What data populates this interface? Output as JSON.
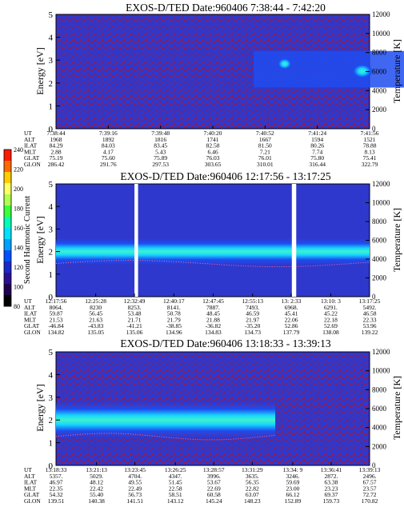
{
  "colors": {
    "background_blue": "#2f38cc",
    "band_blue": "#1e4cf0",
    "band_cyan": "#18d8ff",
    "band_core": "#3ff2c8",
    "noise_red": "#a0153c",
    "gap_white": "#ffffff",
    "trace_dots": "#ff6aa0"
  },
  "colorbar": {
    "label": "Second Harmonic Current",
    "ticks": [
      "240",
      "220",
      "200",
      "180",
      "160",
      "140",
      "120",
      "100",
      "80"
    ],
    "colors": [
      "#ff1a00",
      "#ff6a00",
      "#ffcc00",
      "#ffff66",
      "#b0ff50",
      "#3cff3c",
      "#00ffb4",
      "#00e0ff",
      "#00a0ff",
      "#0050ff",
      "#1a28c8",
      "#2a1090",
      "#200050",
      "#000000"
    ]
  },
  "chart_data": [
    {
      "type": "heatmap",
      "title": "EXOS-D/TED   Date:960406  7:38:44 - 7:42:20",
      "ylabel": "Energy [eV]",
      "y2label": "Temperature [K]",
      "ylim": [
        0,
        5
      ],
      "y_ticks": [
        "0",
        "1",
        "2",
        "3",
        "4",
        "5"
      ],
      "y2lim": [
        0,
        12000
      ],
      "y2_ticks": [
        "0",
        "2000",
        "4000",
        "6000",
        "8000",
        "10000",
        "12000"
      ],
      "features": [
        {
          "kind": "cyan patch",
          "x_start": "7:40:45",
          "x_end": "7:42:20",
          "energy_min": 1.8,
          "energy_max": 3.4
        }
      ],
      "orbit_table": {
        "row_labels": [
          "UT",
          "ALT",
          "ILAT",
          "MLT",
          "GLAT",
          "GLON"
        ],
        "columns": [
          [
            "7:38:44",
            "1968",
            "84.29",
            "2.88",
            "75.19",
            "286.42"
          ],
          [
            "7:39:16",
            "1892",
            "84.03",
            "4.17",
            "75.60",
            "291.76"
          ],
          [
            "7:39:48",
            "1816",
            "83.45",
            "5.43",
            "75.89",
            "297.53"
          ],
          [
            "7:40:20",
            "1741",
            "82.58",
            "6.46",
            "76.03",
            "303.65"
          ],
          [
            "7:40:52",
            "1667",
            "81.50",
            "7.21",
            "76.01",
            "310.01"
          ],
          [
            "7:41:24",
            "1594",
            "80.26",
            "7.74",
            "75.80",
            "316.44"
          ],
          [
            "7:41:56",
            "1521",
            "78.88",
            "8.13",
            "75.41",
            "322.79"
          ]
        ]
      }
    },
    {
      "type": "heatmap",
      "title": "EXOS-D/TED   Date:960406  12:17:56 - 13:17:25",
      "ylabel": "Energy [eV]",
      "y2label": "Temperature [K]",
      "ylim": [
        0,
        5
      ],
      "y_ticks": [
        "0",
        "1",
        "2",
        "3",
        "4",
        "5"
      ],
      "y2lim": [
        0,
        12000
      ],
      "y2_ticks": [
        "0",
        "2000",
        "4000",
        "6000",
        "8000",
        "10000",
        "12000"
      ],
      "features": [
        {
          "kind": "band",
          "energy_center": 2.0,
          "energy_width": 0.6
        },
        {
          "kind": "data gap",
          "x_start": "12:32:49",
          "x_end": "12:33:30"
        },
        {
          "kind": "data gap",
          "x_start": "13:02:40",
          "x_end": "13:03:30"
        }
      ],
      "orbit_table": {
        "row_labels": [
          "UT",
          "ALT",
          "ILAT",
          "MLT",
          "GLAT",
          "GLON"
        ],
        "columns": [
          [
            "12:17:56",
            "8064.",
            "59.87",
            "21.53",
            "-46.84",
            "134.82"
          ],
          [
            "12:25:28",
            "8230",
            "56.45",
            "21.63",
            "-43.83",
            "135.05"
          ],
          [
            "12:32:49",
            "8253.",
            "53.48",
            "21.71",
            "-41.21",
            "135.06"
          ],
          [
            "12:40:17",
            "8141.",
            "50.78",
            "21.79",
            "-38.85",
            "134.96"
          ],
          [
            "12:47:45",
            "7887.",
            "48.45",
            "21.88",
            "-36.82",
            "134.83"
          ],
          [
            "12:55:13",
            "7493.",
            "46.59",
            "21.97",
            "-35.20",
            "134.73"
          ],
          [
            "13: 2:33",
            "6968.",
            "45.41",
            "22.06",
            "52.86",
            "137.79"
          ],
          [
            "13:10: 3",
            "6291.",
            "45.22",
            "22.18",
            "52.69",
            "138.08"
          ],
          [
            "13:17:25",
            "5492.",
            "46.58",
            "22.33",
            "53.96",
            "139.22"
          ]
        ]
      }
    },
    {
      "type": "heatmap",
      "title": "EXOS-D/TED   Date:960406  13:18:33 - 13:39:13",
      "ylabel": "Energy [eV]",
      "y2label": "Temperature [K]",
      "ylim": [
        0,
        5
      ],
      "y_ticks": [
        "0",
        "1",
        "2",
        "3",
        "4",
        "5"
      ],
      "y2lim": [
        0,
        12000
      ],
      "y2_ticks": [
        "0",
        "2000",
        "4000",
        "6000",
        "8000",
        "10000",
        "12000"
      ],
      "features": [
        {
          "kind": "band",
          "x_start": "13:18:33",
          "x_end": "13:33:00",
          "energy_center": 2.0,
          "energy_width": 0.8
        }
      ],
      "orbit_table": {
        "row_labels": [
          "UT",
          "ALT",
          "ILAT",
          "MLT",
          "GLAT",
          "GLON"
        ],
        "columns": [
          [
            "13:18:33",
            "5357.",
            "46.97",
            "22.35",
            "54.32",
            "139.51"
          ],
          [
            "13:21:13",
            "5029.",
            "48.12",
            "22.42",
            "55.40",
            "140.38"
          ],
          [
            "13:23:45",
            "4704.",
            "49.55",
            "22.49",
            "56.73",
            "141.51"
          ],
          [
            "13:26:25",
            "4347.",
            "51.45",
            "22.58",
            "58.51",
            "143.12"
          ],
          [
            "13:28:57",
            "3996.",
            "53.67",
            "22.69",
            "60.58",
            "145.24"
          ],
          [
            "13:31:29",
            "3635.",
            "56.35",
            "22.82",
            "63.07",
            "148.23"
          ],
          [
            "13:34: 9",
            "3246.",
            "59.69",
            "23.00",
            "66.12",
            "152.89"
          ],
          [
            "13:36:41",
            "2872.",
            "63.38",
            "23.23",
            "69.37",
            "159.73"
          ],
          [
            "13:39:13",
            "2496.",
            "67.57",
            "23.57",
            "72.72",
            "170.82"
          ]
        ]
      }
    }
  ]
}
